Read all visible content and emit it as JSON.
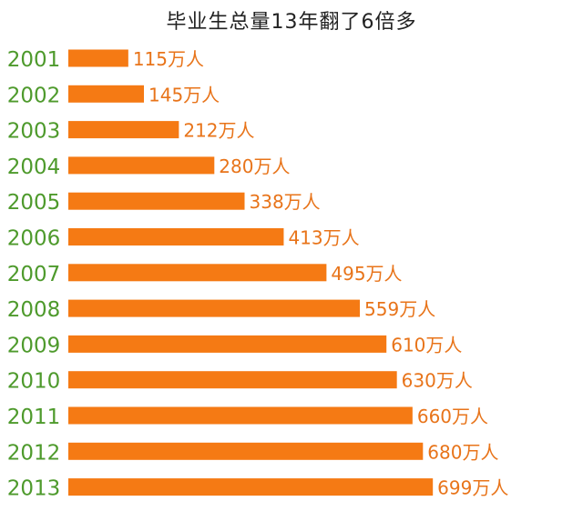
{
  "colors": {
    "bar": "#f57a14",
    "value_label": "#e8741a",
    "year_label": "#4e9a2c",
    "title": "#222222"
  },
  "chart_data": {
    "type": "bar",
    "orientation": "horizontal",
    "title": "毕业生总量13年翻了6倍多",
    "xlabel": "",
    "ylabel": "",
    "categories": [
      "2001",
      "2002",
      "2003",
      "2004",
      "2005",
      "2006",
      "2007",
      "2008",
      "2009",
      "2010",
      "2011",
      "2012",
      "2013"
    ],
    "values": [
      115,
      145,
      212,
      280,
      338,
      413,
      495,
      559,
      610,
      630,
      660,
      680,
      699
    ],
    "value_labels": [
      "115万人",
      "145万人",
      "212万人",
      "280万人",
      "338万人",
      "413万人",
      "495万人",
      "559万人",
      "610万人",
      "630万人",
      "660万人",
      "680万人",
      "699万人"
    ],
    "xlim": [
      0,
      800
    ],
    "grid": false,
    "legend": "none"
  }
}
